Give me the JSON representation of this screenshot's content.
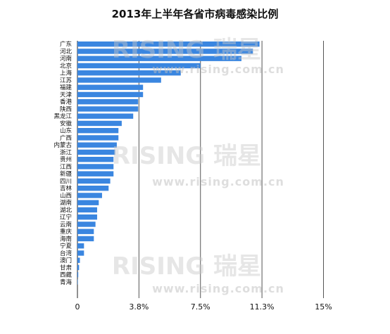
{
  "chart_data": {
    "type": "bar",
    "orientation": "horizontal",
    "title": "2013年上半年各省市病毒感染比例",
    "categories": [
      "广东",
      "河北",
      "河南",
      "北京",
      "上海",
      "江苏",
      "福建",
      "天津",
      "香港",
      "陕西",
      "黑龙江",
      "安徽",
      "山东",
      "广西",
      "内蒙古",
      "浙江",
      "贵州",
      "江西",
      "新疆",
      "四川",
      "吉林",
      "山西",
      "湖南",
      "湖北",
      "辽宁",
      "云南",
      "重庆",
      "海南",
      "宁夏",
      "台湾",
      "澳门",
      "甘肃",
      "西藏",
      "青海"
    ],
    "values": [
      11.1,
      10.7,
      10.0,
      7.5,
      6.3,
      5.1,
      4.0,
      4.0,
      3.7,
      3.7,
      3.4,
      2.7,
      2.5,
      2.5,
      2.4,
      2.3,
      2.2,
      2.2,
      2.2,
      2.0,
      1.9,
      1.5,
      1.3,
      1.2,
      1.2,
      1.1,
      1.0,
      1.0,
      0.4,
      0.4,
      0.15,
      0.1,
      0.05,
      0.0
    ],
    "x_ticks": [
      "0",
      "3.8%",
      "7.5%",
      "11.3%",
      "15%"
    ],
    "x_tick_values": [
      0,
      3.75,
      7.5,
      11.25,
      15
    ],
    "xlim": [
      0,
      15
    ],
    "grid": true,
    "bar_color": "#3a86e0",
    "watermark": {
      "logo_text": "RISING 瑞星",
      "url_text": "www.rising.com.cn"
    }
  }
}
